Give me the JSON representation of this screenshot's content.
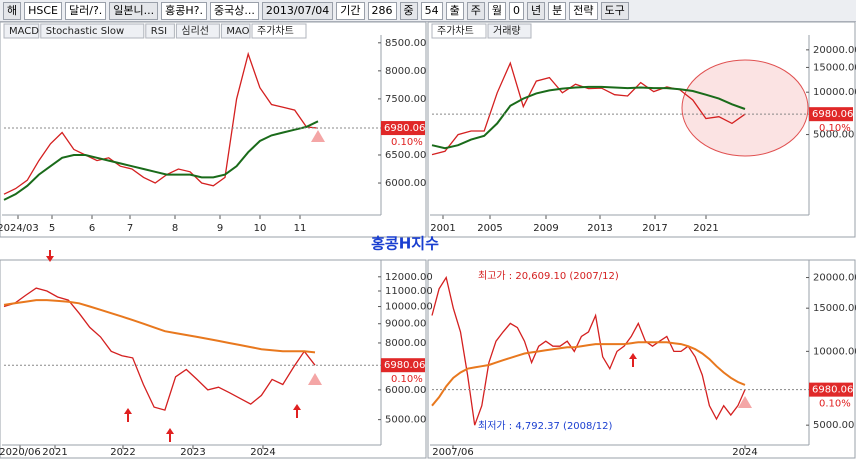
{
  "toolbar": {
    "items": [
      "해",
      "HSCE",
      "달러/?.",
      "일본니...",
      "홍콩H?.",
      "중국상...",
      "2013/07/04",
      "기간",
      "286",
      "중",
      "54",
      "출",
      "주",
      "월",
      "0",
      "년",
      "분",
      "전략",
      "도구"
    ]
  },
  "center_title": "홍콩H지수",
  "chart_data": [
    {
      "type": "line",
      "tabs": [
        "MACD",
        "Stochastic Slow",
        "RSI",
        "심리선",
        "MAO",
        "주가차트"
      ],
      "ylim": [
        5430,
        8550
      ],
      "log": false,
      "yticks": [
        {
          "value": 8500,
          "label": "8500.00"
        },
        {
          "value": 8000,
          "label": "8000.00"
        },
        {
          "value": 7500,
          "label": "7500.00"
        },
        {
          "value": 6500,
          "label": "6500.00"
        },
        {
          "value": 6000,
          "label": "6000.00"
        }
      ],
      "x_labels": [
        "2024/03",
        "5",
        "6",
        "7",
        "8",
        "9",
        "10",
        "11"
      ],
      "last_price": 6980.06,
      "change": "0.10%",
      "series": [
        {
          "name": "price",
          "color": "#d42020",
          "values": [
            5800,
            5900,
            6050,
            6400,
            6700,
            6900,
            6600,
            6500,
            6400,
            6450,
            6300,
            6250,
            6100,
            6000,
            6150,
            6250,
            6200,
            6000,
            5950,
            6100,
            7500,
            8300,
            7700,
            7400,
            7350,
            7300,
            7000,
            6980
          ]
        },
        {
          "name": "ma",
          "color": "#1a6b1a",
          "values": [
            5700,
            5800,
            5950,
            6150,
            6300,
            6450,
            6500,
            6500,
            6450,
            6400,
            6350,
            6300,
            6250,
            6200,
            6150,
            6150,
            6150,
            6100,
            6100,
            6150,
            6300,
            6550,
            6750,
            6850,
            6900,
            6950,
            7000,
            7100
          ]
        }
      ]
    },
    {
      "type": "line",
      "tabs": [
        "주가차트",
        "거래량"
      ],
      "ylim": [
        1340,
        23500
      ],
      "log": true,
      "yticks": [
        {
          "value": 20000,
          "label": "20000.00"
        },
        {
          "value": 15000,
          "label": "15000.00"
        },
        {
          "value": 10000,
          "label": "10000.00"
        },
        {
          "value": 5000,
          "label": "5000.00"
        }
      ],
      "x_labels": [
        "2001",
        "2005",
        "2009",
        "2013",
        "2017",
        "2021"
      ],
      "last_price": 6980.06,
      "change": "0.10%",
      "series": [
        {
          "name": "price",
          "color": "#d42020",
          "values": [
            3600,
            3800,
            5000,
            5300,
            5300,
            9900,
            16100,
            7900,
            12000,
            12700,
            9900,
            11400,
            10600,
            10700,
            9600,
            9400,
            11700,
            10100,
            10900,
            10400,
            8800,
            6500,
            6700,
            6000,
            6980
          ]
        },
        {
          "name": "ma",
          "color": "#1a6b1a",
          "values": [
            4200,
            4000,
            4200,
            4600,
            4900,
            6000,
            8000,
            9000,
            9800,
            10300,
            10600,
            10800,
            10900,
            10900,
            10800,
            10700,
            10800,
            10700,
            10700,
            10500,
            10200,
            9600,
            9000,
            8200,
            7600
          ]
        }
      ]
    },
    {
      "type": "line",
      "tabs": [],
      "ylim": [
        4280,
        12900
      ],
      "log": true,
      "yticks": [
        {
          "value": 12000,
          "label": "12000.00"
        },
        {
          "value": 11000,
          "label": "11000.00"
        },
        {
          "value": 10000,
          "label": "10000.00"
        },
        {
          "value": 9000,
          "label": "9000.00"
        },
        {
          "value": 8000,
          "label": "8000.00"
        },
        {
          "value": 6000,
          "label": "6000.00"
        },
        {
          "value": 5000,
          "label": "5000.00"
        }
      ],
      "x_labels": [
        "2020/06",
        "2021",
        "2022",
        "2023",
        "2024"
      ],
      "last_price": 6980.06,
      "change": "0.10%",
      "series": [
        {
          "name": "price",
          "color": "#d42020",
          "values": [
            10000,
            10200,
            10700,
            11200,
            11000,
            10600,
            10400,
            9600,
            8800,
            8300,
            7600,
            7400,
            7300,
            6200,
            5400,
            5300,
            6500,
            6800,
            6400,
            6000,
            6100,
            5900,
            5700,
            5500,
            5800,
            6400,
            6200,
            6900,
            7600,
            6980
          ]
        },
        {
          "name": "ma",
          "color": "#e8781e",
          "values": [
            10100,
            10200,
            10300,
            10400,
            10400,
            10350,
            10300,
            10200,
            10000,
            9800,
            9600,
            9400,
            9200,
            9000,
            8800,
            8600,
            8500,
            8400,
            8300,
            8200,
            8100,
            8000,
            7900,
            7800,
            7700,
            7650,
            7600,
            7600,
            7600,
            7550
          ]
        }
      ]
    },
    {
      "type": "line",
      "tabs": [],
      "ylim": [
        4150,
        22500
      ],
      "log": true,
      "yticks": [
        {
          "value": 20000,
          "label": "20000.00"
        },
        {
          "value": 15000,
          "label": "15000.00"
        },
        {
          "value": 10000,
          "label": "10000.00"
        },
        {
          "value": 5000,
          "label": "5000.00"
        }
      ],
      "x_labels": [
        "2007/06",
        "2024"
      ],
      "last_price": 6980.06,
      "change": "0.10%",
      "annotations": [
        "최고가 : 20,609.10 (2007/12)",
        "최저가 : 4,792.37 (2008/12)"
      ],
      "series": [
        {
          "name": "price",
          "color": "#d42020",
          "values": [
            14000,
            18000,
            20000,
            15000,
            12000,
            8000,
            5000,
            6000,
            9000,
            11000,
            12000,
            13000,
            12500,
            11000,
            9000,
            10500,
            11000,
            10500,
            10500,
            11000,
            10000,
            11500,
            12000,
            14000,
            9500,
            8500,
            10000,
            10500,
            11500,
            13000,
            11000,
            10500,
            11000,
            11500,
            10000,
            10000,
            10500,
            9500,
            8000,
            6000,
            5300,
            6000,
            5500,
            6000,
            6980
          ]
        },
        {
          "name": "ma",
          "color": "#e8781e",
          "values": [
            6000,
            6500,
            7200,
            7800,
            8200,
            8500,
            8600,
            8700,
            8800,
            9000,
            9200,
            9400,
            9600,
            9800,
            9900,
            10000,
            10100,
            10200,
            10300,
            10400,
            10400,
            10500,
            10600,
            10700,
            10700,
            10700,
            10700,
            10700,
            10800,
            10900,
            10900,
            10900,
            10900,
            10900,
            10800,
            10700,
            10500,
            10200,
            9800,
            9300,
            8700,
            8200,
            7800,
            7500,
            7300
          ]
        }
      ]
    }
  ]
}
